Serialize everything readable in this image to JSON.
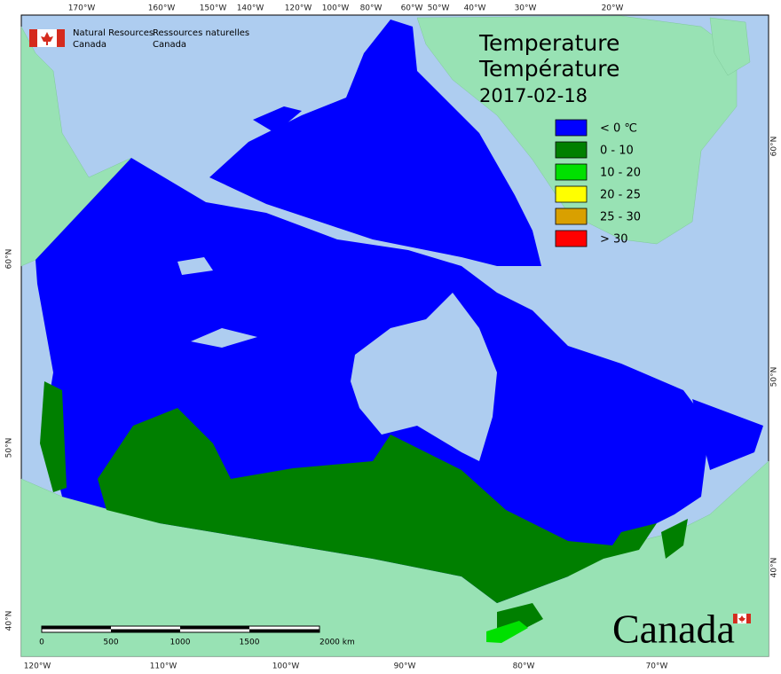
{
  "header": {
    "agency_en": [
      "Natural Resources",
      "Canada"
    ],
    "agency_fr": [
      "Ressources naturelles",
      "Canada"
    ]
  },
  "title": {
    "en": "Temperature",
    "fr": "Température",
    "date": "2017-02-18"
  },
  "legend": {
    "items": [
      {
        "label": "< 0 ℃",
        "color": "#0000ff"
      },
      {
        "label": "0 - 10",
        "color": "#007f00"
      },
      {
        "label": "10 - 20",
        "color": "#00e000"
      },
      {
        "label": "20 - 25",
        "color": "#ffff00"
      },
      {
        "label": "25 - 30",
        "color": "#d9a000"
      },
      {
        "label": "> 30",
        "color": "#ff0000"
      }
    ]
  },
  "graticule": {
    "top": [
      "170°W",
      "160°W",
      "150°W",
      "140°W",
      "120°W",
      "100°W",
      "80°W",
      "60°W",
      "50°W",
      "40°W",
      "30°W",
      "20°W"
    ],
    "bottom": [
      "120°W",
      "110°W",
      "100°W",
      "90°W",
      "80°W",
      "70°W"
    ],
    "left": [
      "60°N",
      "50°N",
      "40°N"
    ],
    "right": [
      "60°N",
      "50°N",
      "40°N"
    ]
  },
  "scale_bar": {
    "labels": [
      "0",
      "500",
      "1000",
      "1500",
      "2000 km"
    ]
  },
  "wordmark": "Canada"
}
